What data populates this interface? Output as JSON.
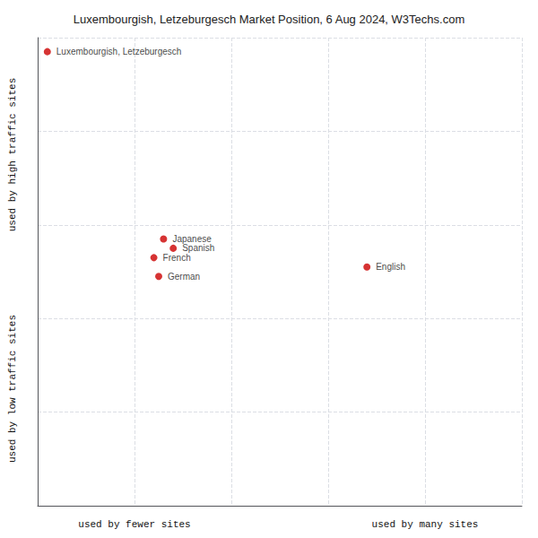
{
  "chart_data": {
    "type": "scatter",
    "title": "Luxembourgish, Letzeburgesch Market Position, 6 Aug 2024, W3Techs.com",
    "xlabel_left": "used by fewer sites",
    "xlabel_right": "used by many sites",
    "ylabel_top": "used by high traffic sites",
    "ylabel_bottom": "used by low traffic sites",
    "points": [
      {
        "label": "Luxembourgish, Letzeburgesch",
        "x": 2,
        "y": 97
      },
      {
        "label": "Japanese",
        "x": 26,
        "y": 57
      },
      {
        "label": "Spanish",
        "x": 28,
        "y": 55
      },
      {
        "label": "French",
        "x": 24,
        "y": 53
      },
      {
        "label": "German",
        "x": 25,
        "y": 49
      },
      {
        "label": "English",
        "x": 68,
        "y": 51
      }
    ],
    "color": "#cc0000",
    "marker": "circle",
    "xlim": [
      0,
      100
    ],
    "ylim": [
      0,
      100
    ],
    "xticks": [
      0,
      20,
      40,
      60,
      80,
      100
    ],
    "yticks": [
      0,
      20,
      40,
      60,
      80,
      100
    ],
    "grid": true,
    "tick_labels": false
  }
}
